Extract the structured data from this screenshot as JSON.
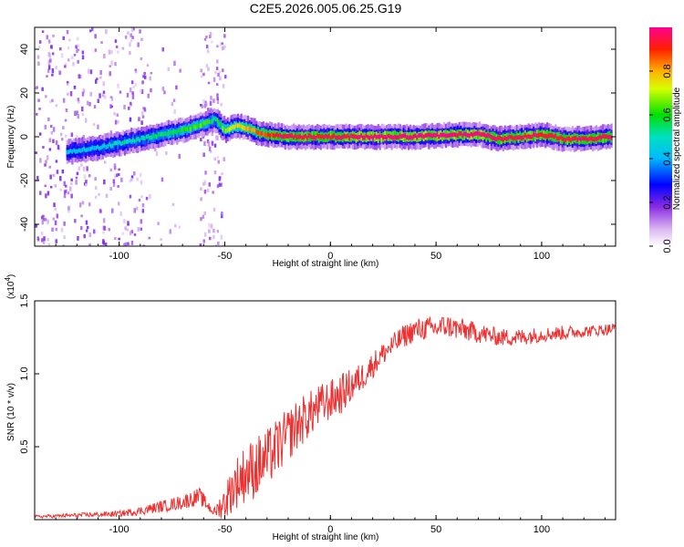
{
  "title": "C2E5.2026.005.06.25.G19",
  "chart_data": [
    {
      "type": "heatmap",
      "xlabel": "Height of straight line (km)",
      "ylabel": "Frequency (Hz)",
      "xlim": [
        -140,
        135
      ],
      "ylim": [
        -50,
        50
      ],
      "xticks": [
        -100,
        -50,
        0,
        50,
        100
      ],
      "yticks": [
        -40,
        -20,
        0,
        20,
        40
      ],
      "colorbar": {
        "label": "Normalized spectral amplitude",
        "ticks": [
          0.0,
          0.2,
          0.4,
          0.6,
          0.8
        ],
        "colormap": "rainbow (white-violet-blue-cyan-green-yellow-red-magenta)",
        "range": [
          0,
          1
        ]
      },
      "ridge_frequency": {
        "x": [
          -125,
          -110,
          -100,
          -90,
          -80,
          -70,
          -60,
          -55,
          -50,
          -45,
          -40,
          -35,
          -30,
          -20,
          -10,
          0,
          20,
          40,
          60,
          70,
          80,
          90,
          100,
          110,
          120,
          133
        ],
        "freq": [
          -7,
          -5,
          -3,
          -1,
          1,
          3,
          6,
          8,
          3,
          5,
          4,
          2,
          1,
          0,
          0,
          0,
          0,
          0,
          1,
          1,
          -1,
          0,
          1,
          -1,
          -1,
          0
        ],
        "amplitude": [
          0.45,
          0.45,
          0.5,
          0.5,
          0.55,
          0.6,
          0.65,
          0.55,
          0.7,
          0.75,
          0.8,
          0.85,
          0.9,
          0.95,
          0.95,
          0.95,
          1.0,
          1.0,
          1.0,
          1.0,
          0.95,
          0.95,
          0.95,
          0.95,
          0.95,
          0.95
        ]
      },
      "grid": false
    },
    {
      "type": "line",
      "xlabel": "Height of straight line (km)",
      "ylabel": "SNR (10 * v/v)",
      "scale_label": "(x10",
      "scale_exponent": "4",
      "scale_close": ")",
      "xlim": [
        -140,
        135
      ],
      "ylim": [
        0,
        1.5
      ],
      "xticks": [
        -100,
        -50,
        0,
        50,
        100
      ],
      "yticks": [
        0.5,
        1.0,
        1.5
      ],
      "series": [
        {
          "color": "#ee3030",
          "x": [
            -140,
            -120,
            -100,
            -90,
            -80,
            -70,
            -62,
            -55,
            -50,
            -45,
            -40,
            -35,
            -30,
            -25,
            -20,
            -15,
            -10,
            -5,
            0,
            5,
            10,
            15,
            20,
            25,
            30,
            35,
            40,
            45,
            50,
            55,
            60,
            70,
            80,
            90,
            100,
            110,
            120,
            135
          ],
          "values": [
            0.02,
            0.03,
            0.04,
            0.06,
            0.09,
            0.12,
            0.16,
            0.05,
            0.12,
            0.25,
            0.32,
            0.36,
            0.42,
            0.5,
            0.58,
            0.66,
            0.72,
            0.78,
            0.82,
            0.86,
            0.92,
            0.98,
            1.06,
            1.14,
            1.2,
            1.26,
            1.3,
            1.31,
            1.31,
            1.33,
            1.31,
            1.28,
            1.25,
            1.25,
            1.27,
            1.28,
            1.29,
            1.31
          ],
          "noise": [
            0.01,
            0.015,
            0.02,
            0.03,
            0.04,
            0.05,
            0.06,
            0.03,
            0.12,
            0.18,
            0.2,
            0.22,
            0.2,
            0.2,
            0.18,
            0.18,
            0.16,
            0.15,
            0.14,
            0.14,
            0.12,
            0.1,
            0.09,
            0.08,
            0.08,
            0.08,
            0.08,
            0.08,
            0.08,
            0.08,
            0.08,
            0.07,
            0.06,
            0.06,
            0.05,
            0.05,
            0.04,
            0.04
          ]
        }
      ]
    }
  ]
}
